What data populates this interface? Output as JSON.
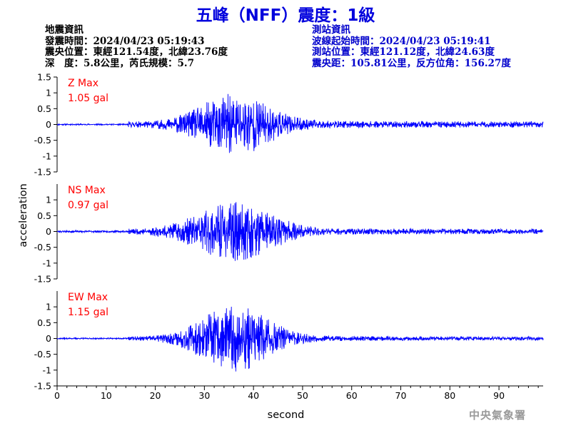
{
  "title": "五峰（NFF）震度：1級",
  "quake_info": {
    "heading": "地震資訊",
    "origin_time": "發震時間：2024/04/23 05:19:43",
    "epicenter": "震央位置：東經121.54度，北緯23.76度",
    "depth_magnitude": "深　度：5.8公里，芮氏規模：5.7"
  },
  "station_info": {
    "heading": "測站資訊",
    "wave_start": "波線起始時間：2024/04/23 05:19:41",
    "station_position": "測站位置：東經121.12度，北緯24.63度",
    "distance_azimuth": "震央距：105.81公里，反方位角：156.27度"
  },
  "watermark": "中央氣象署",
  "colors": {
    "title": "#0000dd",
    "trace": "#0000ff",
    "max_label": "#ff0000",
    "station_info": "#0000cc",
    "watermark": "#9a9a9a"
  },
  "chart_data": {
    "type": "line",
    "xlabel": "second",
    "ylabel": "acceleration",
    "xlim": [
      0,
      99
    ],
    "xticks": [
      0,
      10,
      20,
      30,
      40,
      50,
      60,
      70,
      80,
      90
    ],
    "ylim": [
      -1.5,
      1.5
    ],
    "yticks": [
      -1.5,
      -1,
      -0.5,
      0,
      0.5,
      1,
      1.5
    ],
    "grid": false,
    "panels": [
      {
        "component": "Z",
        "max_label": "Z Max",
        "max_value": "1.05 gal",
        "peak": 1.05,
        "onset": 14.5,
        "peak_time": 36,
        "envelope_width": 9,
        "noise": 0.02,
        "coda": 0.07,
        "seed": 11
      },
      {
        "component": "NS",
        "max_label": "NS Max",
        "max_value": "0.97 gal",
        "peak": 0.97,
        "onset": 14.5,
        "peak_time": 36,
        "envelope_width": 10,
        "noise": 0.03,
        "coda": 0.05,
        "seed": 23
      },
      {
        "component": "EW",
        "max_label": "EW Max",
        "max_value": "1.15 gal",
        "peak": 1.15,
        "onset": 14.5,
        "peak_time": 36,
        "envelope_width": 9,
        "noise": 0.02,
        "coda": 0.04,
        "seed": 37
      }
    ]
  }
}
